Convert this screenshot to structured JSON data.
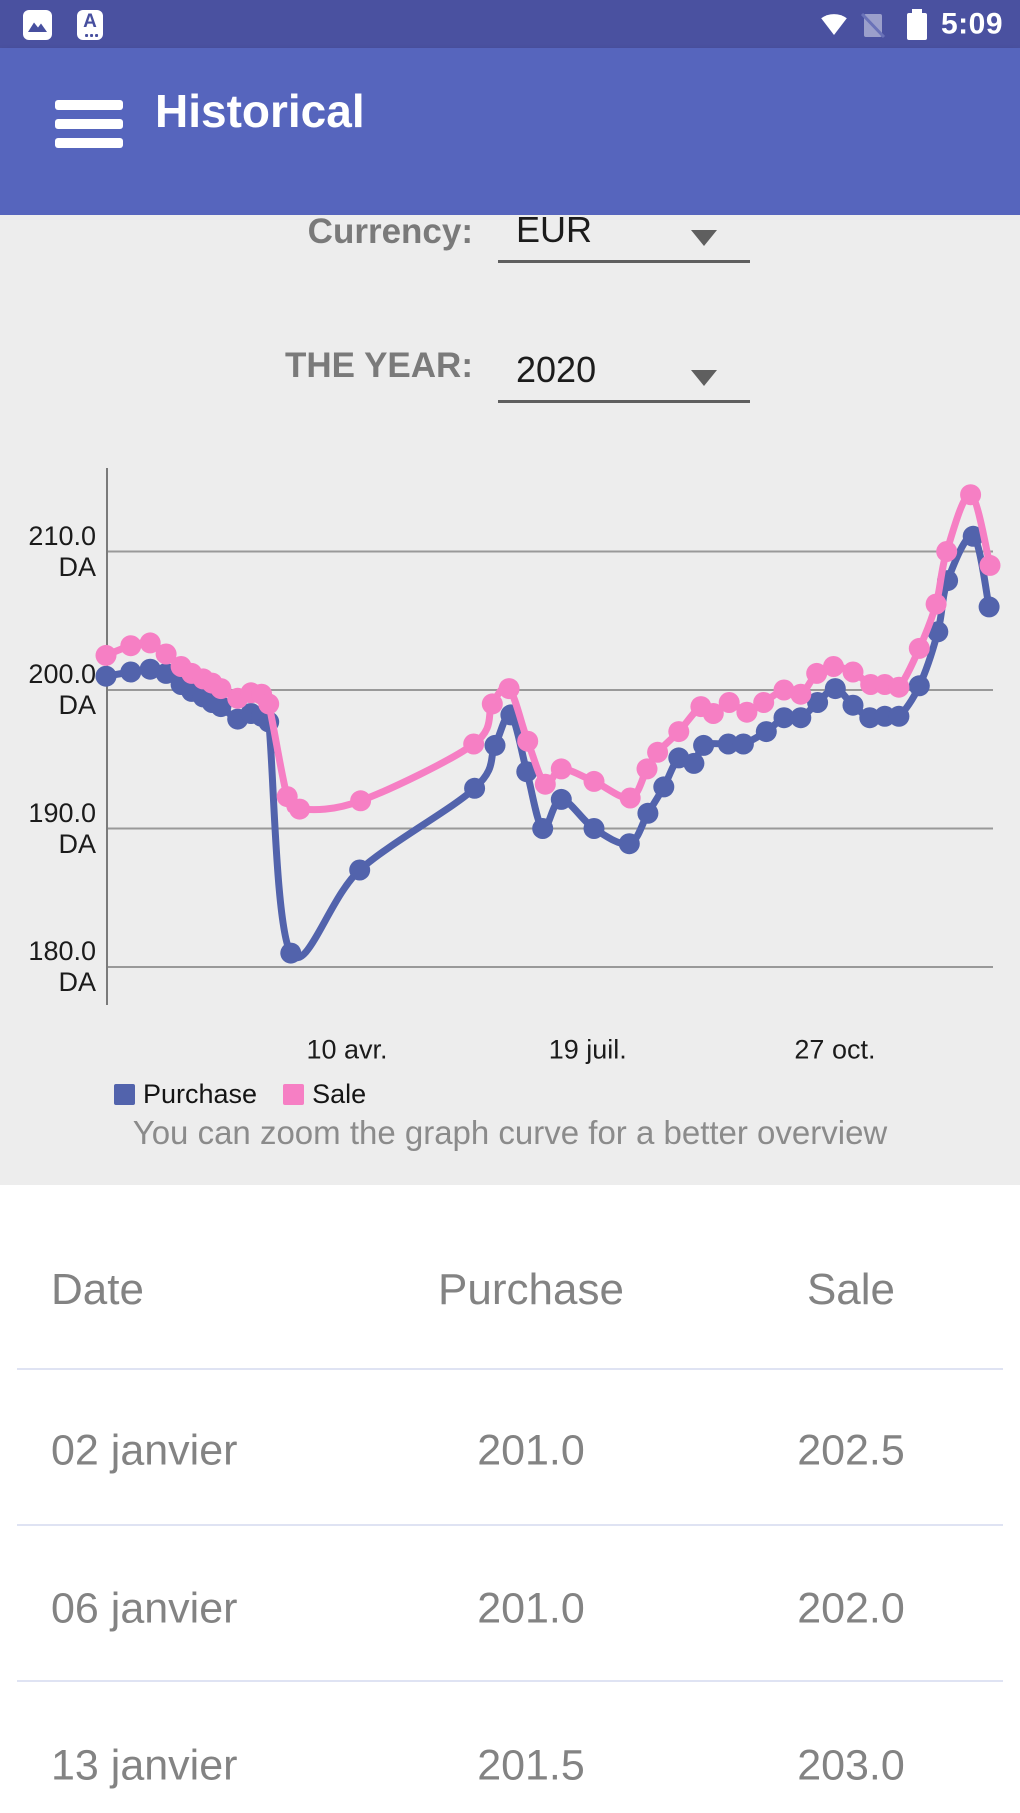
{
  "status_bar": {
    "time": "5:09",
    "notification_icons": [
      "image-notification-icon",
      "letter-a-notification-icon"
    ],
    "system_icons": [
      "wifi-icon",
      "no-sim-icon",
      "battery-full-icon"
    ],
    "letter_badge_text": "A"
  },
  "app_bar": {
    "title": "Historical",
    "background_color": "#5665bd"
  },
  "filters": {
    "currency": {
      "label": "Currency:",
      "value": "EUR"
    },
    "year": {
      "label": "THE YEAR:",
      "value": "2020"
    }
  },
  "chart_data": {
    "type": "line",
    "title": "",
    "xlabel": "",
    "ylabel": "DA",
    "grid": true,
    "legend_position": "bottom-left",
    "ylim": [
      177,
      216
    ],
    "y_ticks": [
      {
        "label": "210.0 DA",
        "value": 210.0
      },
      {
        "label": "200.0 DA",
        "value": 200.0
      },
      {
        "label": "190.0 DA",
        "value": 190.0
      },
      {
        "label": "180.0 DA",
        "value": 180.0
      }
    ],
    "x_ticks": [
      {
        "label": "10 avr.",
        "pos": 0.2726
      },
      {
        "label": "19 juil.",
        "pos": 0.545
      },
      {
        "label": "27 oct.",
        "pos": 0.8246
      }
    ],
    "legend": [
      {
        "name": "Purchase",
        "color": "#5263ac"
      },
      {
        "name": "Sale",
        "color": "#f67fc4"
      }
    ],
    "series": [
      {
        "name": "Purchase",
        "color": "#5263ac",
        "points": [
          [
            0.0,
            201.0
          ],
          [
            0.028,
            201.3
          ],
          [
            0.05,
            201.5
          ],
          [
            0.068,
            201.2
          ],
          [
            0.085,
            200.4
          ],
          [
            0.097,
            199.9
          ],
          [
            0.11,
            199.5
          ],
          [
            0.12,
            199.1
          ],
          [
            0.13,
            198.8
          ],
          [
            0.149,
            197.9
          ],
          [
            0.164,
            198.3
          ],
          [
            0.176,
            198.1
          ],
          [
            0.184,
            197.7
          ],
          [
            0.209,
            181.0
          ],
          [
            0.287,
            187.0
          ],
          [
            0.417,
            192.9
          ],
          [
            0.44,
            196.0
          ],
          [
            0.458,
            198.2
          ],
          [
            0.476,
            194.1
          ],
          [
            0.494,
            190.0
          ],
          [
            0.515,
            192.1
          ],
          [
            0.552,
            190.0
          ],
          [
            0.592,
            188.9
          ],
          [
            0.613,
            191.1
          ],
          [
            0.631,
            193.0
          ],
          [
            0.648,
            195.1
          ],
          [
            0.665,
            194.7
          ],
          [
            0.676,
            196.0
          ],
          [
            0.704,
            196.1
          ],
          [
            0.721,
            196.1
          ],
          [
            0.747,
            197.0
          ],
          [
            0.767,
            198.0
          ],
          [
            0.786,
            198.0
          ],
          [
            0.805,
            199.1
          ],
          [
            0.825,
            200.1
          ],
          [
            0.845,
            198.9
          ],
          [
            0.864,
            198.0
          ],
          [
            0.881,
            198.1
          ],
          [
            0.897,
            198.1
          ],
          [
            0.92,
            200.3
          ],
          [
            0.941,
            204.2
          ],
          [
            0.952,
            207.9
          ],
          [
            0.981,
            211.1
          ],
          [
            0.999,
            206.0
          ]
        ]
      },
      {
        "name": "Sale",
        "color": "#f67fc4",
        "points": [
          [
            0.0,
            202.5
          ],
          [
            0.028,
            203.2
          ],
          [
            0.05,
            203.4
          ],
          [
            0.068,
            202.6
          ],
          [
            0.085,
            201.7
          ],
          [
            0.097,
            201.2
          ],
          [
            0.11,
            200.8
          ],
          [
            0.12,
            200.5
          ],
          [
            0.13,
            200.1
          ],
          [
            0.149,
            199.4
          ],
          [
            0.164,
            199.8
          ],
          [
            0.176,
            199.7
          ],
          [
            0.184,
            199.0
          ],
          [
            0.205,
            192.3
          ],
          [
            0.219,
            191.4
          ],
          [
            0.288,
            192.0
          ],
          [
            0.416,
            196.1
          ],
          [
            0.437,
            199.0
          ],
          [
            0.456,
            200.1
          ],
          [
            0.477,
            196.3
          ],
          [
            0.497,
            193.2
          ],
          [
            0.515,
            194.3
          ],
          [
            0.552,
            193.4
          ],
          [
            0.593,
            192.2
          ],
          [
            0.612,
            194.3
          ],
          [
            0.624,
            195.5
          ],
          [
            0.648,
            197.0
          ],
          [
            0.673,
            198.8
          ],
          [
            0.687,
            198.3
          ],
          [
            0.705,
            199.1
          ],
          [
            0.725,
            198.4
          ],
          [
            0.744,
            199.1
          ],
          [
            0.767,
            200.0
          ],
          [
            0.786,
            199.7
          ],
          [
            0.804,
            201.2
          ],
          [
            0.823,
            201.7
          ],
          [
            0.845,
            201.3
          ],
          [
            0.865,
            200.4
          ],
          [
            0.881,
            200.4
          ],
          [
            0.897,
            200.2
          ],
          [
            0.92,
            203.0
          ],
          [
            0.939,
            206.2
          ],
          [
            0.951,
            210.0
          ],
          [
            0.978,
            214.1
          ],
          [
            1.0,
            209.0
          ]
        ]
      }
    ]
  },
  "hint": "You can zoom the graph curve for a better overview",
  "table": {
    "columns": [
      "Date",
      "Purchase",
      "Sale"
    ],
    "rows": [
      {
        "date": "02 janvier",
        "purchase": "201.0",
        "sale": "202.5"
      },
      {
        "date": "06 janvier",
        "purchase": "201.0",
        "sale": "202.0"
      },
      {
        "date": "13 janvier",
        "purchase": "201.5",
        "sale": "203.0"
      }
    ]
  }
}
